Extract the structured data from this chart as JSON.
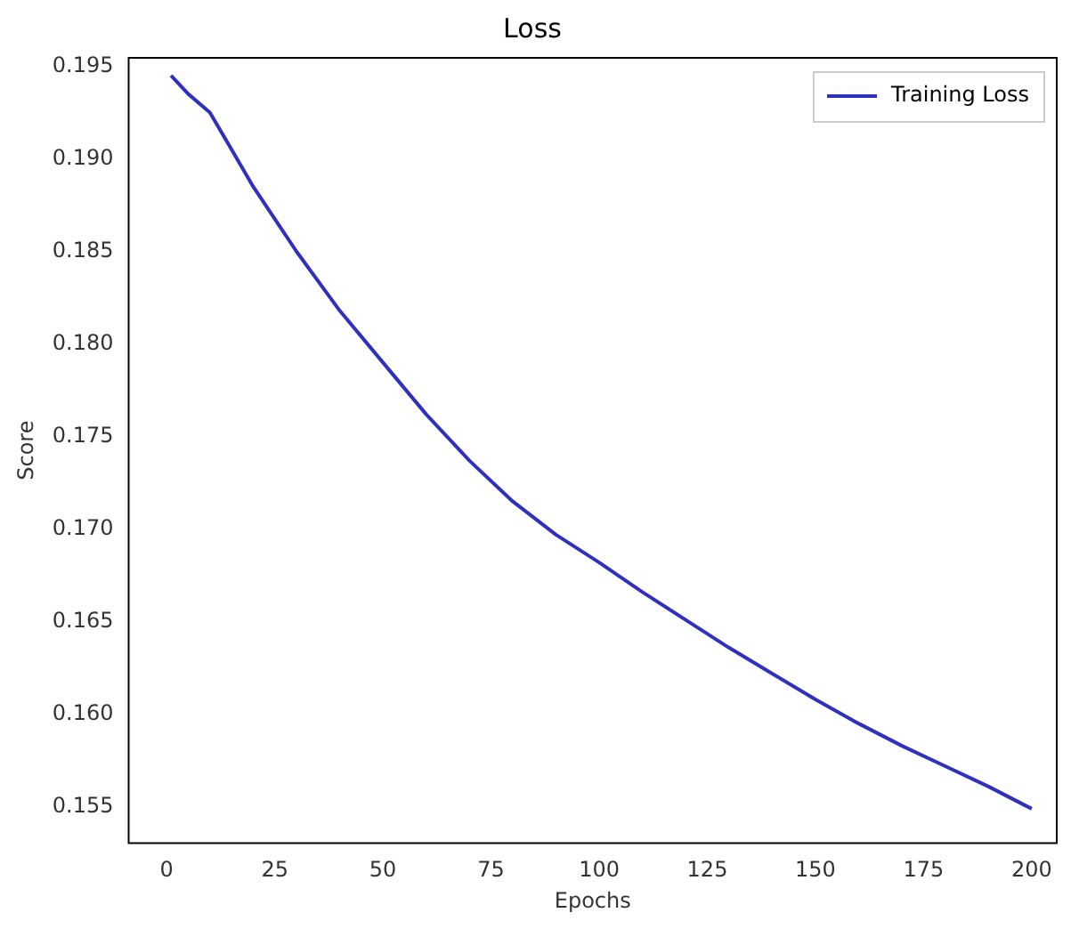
{
  "chart_data": {
    "type": "line",
    "title": "Loss",
    "xlabel": "Epochs",
    "ylabel": "Score",
    "x": [
      1,
      5,
      10,
      15,
      20,
      30,
      40,
      50,
      60,
      70,
      80,
      90,
      100,
      110,
      120,
      130,
      140,
      150,
      160,
      170,
      180,
      190,
      200
    ],
    "series": [
      {
        "name": "Training Loss",
        "color": "#3030c0",
        "values": [
          0.1945,
          0.1935,
          0.1925,
          0.1905,
          0.1885,
          0.185,
          0.1818,
          0.179,
          0.1762,
          0.1737,
          0.1715,
          0.1697,
          0.1682,
          0.1666,
          0.1651,
          0.1636,
          0.1622,
          0.1608,
          0.1595,
          0.1583,
          0.1572,
          0.1561,
          0.1549
        ]
      }
    ],
    "xlim": [
      -9,
      206
    ],
    "xticks": [
      0,
      25,
      50,
      75,
      100,
      125,
      150,
      175,
      200
    ],
    "ylim": [
      0.153,
      0.1955
    ],
    "yticks": [
      {
        "value": 0.155,
        "label": "0.155"
      },
      {
        "value": 0.16,
        "label": "0.160"
      },
      {
        "value": 0.165,
        "label": "0.165"
      },
      {
        "value": 0.17,
        "label": "0.170"
      },
      {
        "value": 0.175,
        "label": "0.175"
      },
      {
        "value": 0.18,
        "label": "0.180"
      },
      {
        "value": 0.185,
        "label": "0.185"
      },
      {
        "value": 0.19,
        "label": "0.190"
      },
      {
        "value": 0.195,
        "label": "0.195"
      }
    ],
    "legend": "top right",
    "grid": false,
    "marker": "none",
    "line_style": "solid"
  }
}
